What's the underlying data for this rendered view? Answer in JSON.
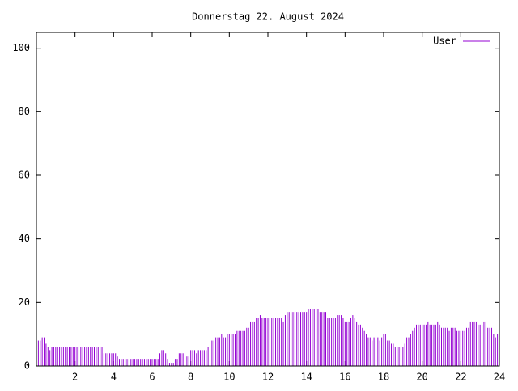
{
  "chart_data": {
    "type": "impulse",
    "title": "Donnerstag 22. August 2024",
    "xlim": [
      0,
      24
    ],
    "xticks": [
      2,
      4,
      6,
      8,
      10,
      12,
      14,
      16,
      18,
      20,
      22,
      24
    ],
    "ylim": [
      0,
      105
    ],
    "yticks": [
      0,
      20,
      40,
      60,
      80,
      100
    ],
    "legend": "top-right",
    "x": [
      0,
      0.1,
      0.2,
      0.3,
      0.4,
      0.5,
      0.6,
      0.7,
      0.8,
      0.9,
      1,
      1.1,
      1.2,
      1.3,
      1.4,
      1.5,
      1.6,
      1.7,
      1.8,
      1.9,
      2,
      2.1,
      2.2,
      2.3,
      2.4,
      2.5,
      2.6,
      2.7,
      2.8,
      2.9,
      3,
      3.1,
      3.2,
      3.3,
      3.4,
      3.5,
      3.6,
      3.7,
      3.8,
      3.9,
      4,
      4.1,
      4.2,
      4.3,
      4.4,
      4.5,
      4.6,
      4.7,
      4.8,
      4.9,
      5,
      5.1,
      5.2,
      5.3,
      5.4,
      5.5,
      5.6,
      5.7,
      5.8,
      5.9,
      6,
      6.1,
      6.2,
      6.3,
      6.4,
      6.5,
      6.6,
      6.7,
      6.8,
      6.9,
      7,
      7.1,
      7.2,
      7.3,
      7.4,
      7.5,
      7.6,
      7.7,
      7.8,
      7.9,
      8,
      8.1,
      8.2,
      8.3,
      8.4,
      8.5,
      8.6,
      8.7,
      8.8,
      8.9,
      9,
      9.1,
      9.2,
      9.3,
      9.4,
      9.5,
      9.6,
      9.7,
      9.8,
      9.9,
      10,
      10.1,
      10.2,
      10.3,
      10.4,
      10.5,
      10.6,
      10.7,
      10.8,
      10.9,
      11,
      11.1,
      11.2,
      11.3,
      11.4,
      11.5,
      11.6,
      11.7,
      11.8,
      11.9,
      12,
      12.1,
      12.2,
      12.3,
      12.4,
      12.5,
      12.6,
      12.7,
      12.8,
      12.9,
      13,
      13.1,
      13.2,
      13.3,
      13.4,
      13.5,
      13.6,
      13.7,
      13.8,
      13.9,
      14,
      14.1,
      14.2,
      14.3,
      14.4,
      14.5,
      14.6,
      14.7,
      14.8,
      14.9,
      15,
      15.1,
      15.2,
      15.3,
      15.4,
      15.5,
      15.6,
      15.7,
      15.8,
      15.9,
      16,
      16.1,
      16.2,
      16.3,
      16.4,
      16.5,
      16.6,
      16.7,
      16.8,
      16.9,
      17,
      17.1,
      17.2,
      17.3,
      17.4,
      17.5,
      17.6,
      17.7,
      17.8,
      17.9,
      18,
      18.1,
      18.2,
      18.3,
      18.4,
      18.5,
      18.6,
      18.7,
      18.8,
      18.9,
      19,
      19.1,
      19.2,
      19.3,
      19.4,
      19.5,
      19.6,
      19.7,
      19.8,
      19.9,
      20,
      20.1,
      20.2,
      20.3,
      20.4,
      20.5,
      20.6,
      20.7,
      20.8,
      20.9,
      21,
      21.1,
      21.2,
      21.3,
      21.4,
      21.5,
      21.6,
      21.7,
      21.8,
      21.9,
      22,
      22.1,
      22.2,
      22.3,
      22.4,
      22.5,
      22.6,
      22.7,
      22.8,
      22.9,
      23,
      23.1,
      23.2,
      23.3,
      23.4,
      23.5,
      23.6,
      23.7,
      23.8,
      23.9
    ],
    "series": [
      {
        "name": "User",
        "color": "#9400d3",
        "values": [
          9,
          8,
          8,
          9,
          9,
          7,
          6,
          5,
          6,
          6,
          6,
          6,
          6,
          6,
          6,
          6,
          6,
          6,
          6,
          6,
          6,
          6,
          6,
          6,
          6,
          6,
          6,
          6,
          6,
          6,
          6,
          6,
          6,
          6,
          6,
          4,
          4,
          4,
          4,
          4,
          4,
          4,
          3,
          2,
          2,
          2,
          2,
          2,
          2,
          2,
          2,
          2,
          2,
          2,
          2,
          2,
          2,
          2,
          2,
          2,
          2,
          2,
          2,
          2,
          4,
          5,
          5,
          4,
          2,
          1,
          1,
          1,
          2,
          2,
          4,
          4,
          4,
          3,
          3,
          3,
          5,
          5,
          5,
          4,
          5,
          5,
          5,
          5,
          5,
          6,
          7,
          8,
          8,
          9,
          9,
          9,
          10,
          9,
          9,
          10,
          10,
          10,
          10,
          10,
          11,
          11,
          11,
          11,
          11,
          12,
          12,
          14,
          14,
          14,
          15,
          15,
          16,
          15,
          15,
          15,
          15,
          15,
          15,
          15,
          15,
          15,
          15,
          15,
          14,
          16,
          17,
          17,
          17,
          17,
          17,
          17,
          17,
          17,
          17,
          17,
          17,
          18,
          18,
          18,
          18,
          18,
          18,
          17,
          17,
          17,
          17,
          15,
          15,
          15,
          15,
          15,
          16,
          16,
          16,
          15,
          14,
          14,
          14,
          15,
          16,
          15,
          14,
          13,
          13,
          12,
          11,
          10,
          9,
          9,
          8,
          9,
          8,
          9,
          8,
          9,
          10,
          10,
          8,
          8,
          7,
          7,
          6,
          6,
          6,
          6,
          6,
          7,
          9,
          9,
          10,
          11,
          12,
          13,
          13,
          13,
          13,
          13,
          13,
          14,
          13,
          13,
          13,
          13,
          14,
          13,
          12,
          12,
          12,
          12,
          11,
          12,
          12,
          12,
          11,
          11,
          11,
          11,
          11,
          12,
          12,
          14,
          14,
          14,
          14,
          13,
          13,
          13,
          14,
          14,
          12,
          12,
          12,
          10,
          9,
          10
        ]
      }
    ]
  }
}
